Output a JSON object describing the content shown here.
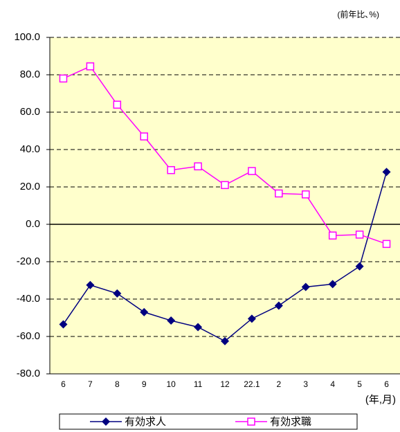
{
  "chart_data": {
    "type": "line",
    "unit_label": "(前年比､%)",
    "x_label": "(年,月)",
    "categories": [
      "6",
      "7",
      "8",
      "9",
      "10",
      "11",
      "12",
      "22.1",
      "2",
      "3",
      "4",
      "5",
      "6"
    ],
    "series": [
      {
        "name": "有効求人",
        "color": "#000080",
        "marker": "diamond",
        "values": [
          -53.5,
          -32.5,
          -37,
          -47,
          -51.5,
          -55,
          -62.5,
          -50.5,
          -43.5,
          -33.5,
          -32,
          -22.5,
          28
        ]
      },
      {
        "name": "有効求職",
        "color": "#ff00ff",
        "marker": "square",
        "values": [
          78,
          84.5,
          64,
          47,
          29,
          31,
          21,
          28.5,
          16.5,
          16,
          -6,
          -5.5,
          -10.5
        ]
      }
    ],
    "ylim": [
      -80,
      100
    ],
    "yticks": [
      {
        "value": -80,
        "label": "-80.0"
      },
      {
        "value": -60,
        "label": "-60.0"
      },
      {
        "value": -40,
        "label": "-40.0"
      },
      {
        "value": -20,
        "label": "-20.0"
      },
      {
        "value": 0,
        "label": "0.0"
      },
      {
        "value": 20,
        "label": "20.0"
      },
      {
        "value": 40,
        "label": "40.0"
      },
      {
        "value": 60,
        "label": "60.0"
      },
      {
        "value": 80,
        "label": "80.0"
      },
      {
        "value": 100,
        "label": "100.0"
      }
    ],
    "grid": true,
    "plot_background": "#ffffcc"
  }
}
